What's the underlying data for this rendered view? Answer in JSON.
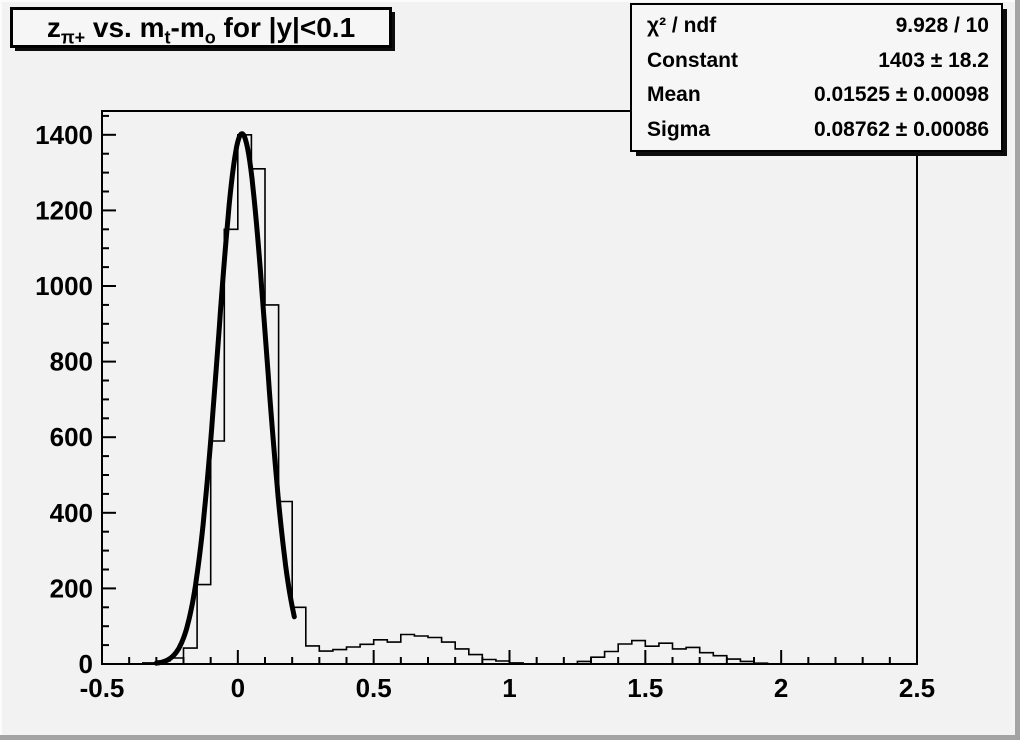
{
  "canvas": {
    "background": "#f2f2f2",
    "bevel_shadow": "#a3a3a3",
    "bevel_highlight": "#fbfbfb",
    "foreground": "#000000"
  },
  "title": {
    "text": "z_π+ vs. m_t-m_o for |y|<0.1",
    "parts": [
      {
        "t": "z"
      },
      {
        "sub": "π+"
      },
      {
        "t": " vs. m"
      },
      {
        "sub": "t"
      },
      {
        "t": "-m"
      },
      {
        "sub": "o"
      },
      {
        "t": " for |y|<0.1"
      }
    ]
  },
  "stats": {
    "rows": [
      {
        "label": "χ² / ndf",
        "value": "9.928 / 10"
      },
      {
        "label": "Constant",
        "value": "1403 ± 18.2"
      },
      {
        "label": "Mean",
        "value": "0.01525 ± 0.00098"
      },
      {
        "label": "Sigma",
        "value": "0.08762 ± 0.00086"
      }
    ]
  },
  "chart_data": {
    "type": "bar",
    "subtype": "histogram-steps",
    "title": "z_π+ vs. m_t-m_o for |y|<0.1",
    "xlabel": "",
    "ylabel": "",
    "xlim": [
      -0.5,
      2.5
    ],
    "ylim": [
      0,
      1463
    ],
    "grid": false,
    "legend_position": "none",
    "bin_start": -0.5,
    "bin_width": 0.05,
    "counts": [
      0,
      0,
      0,
      3,
      8,
      16,
      42,
      210,
      590,
      1150,
      1400,
      1310,
      950,
      430,
      150,
      48,
      34,
      38,
      45,
      52,
      64,
      58,
      78,
      74,
      70,
      58,
      40,
      25,
      12,
      8,
      3,
      0,
      0,
      0,
      0,
      7,
      18,
      33,
      53,
      62,
      47,
      55,
      40,
      44,
      30,
      22,
      13,
      7,
      2,
      0,
      0,
      0,
      0,
      0,
      0,
      0,
      0,
      0,
      0,
      0
    ],
    "x_major_ticks": [
      -0.5,
      0,
      0.5,
      1,
      1.5,
      2,
      2.5
    ],
    "x_tick_labels": [
      "-0.5",
      "0",
      "0.5",
      "1",
      "1.5",
      "2",
      "2.5"
    ],
    "x_minor_step": 0.1,
    "y_major_ticks": [
      0,
      200,
      400,
      600,
      800,
      1000,
      1200,
      1400
    ],
    "y_tick_labels": [
      "0",
      "200",
      "400",
      "600",
      "800",
      "1000",
      "1200",
      "1400"
    ],
    "y_minor_step": 50,
    "fit": {
      "type": "gaussian",
      "chi2": 9.928,
      "ndf": 10,
      "constant": 1403,
      "constant_err": 18.2,
      "mean": 0.01525,
      "mean_err": 0.00098,
      "sigma": 0.08762,
      "sigma_err": 0.00086,
      "draw_range": [
        -0.3,
        0.21
      ]
    }
  }
}
